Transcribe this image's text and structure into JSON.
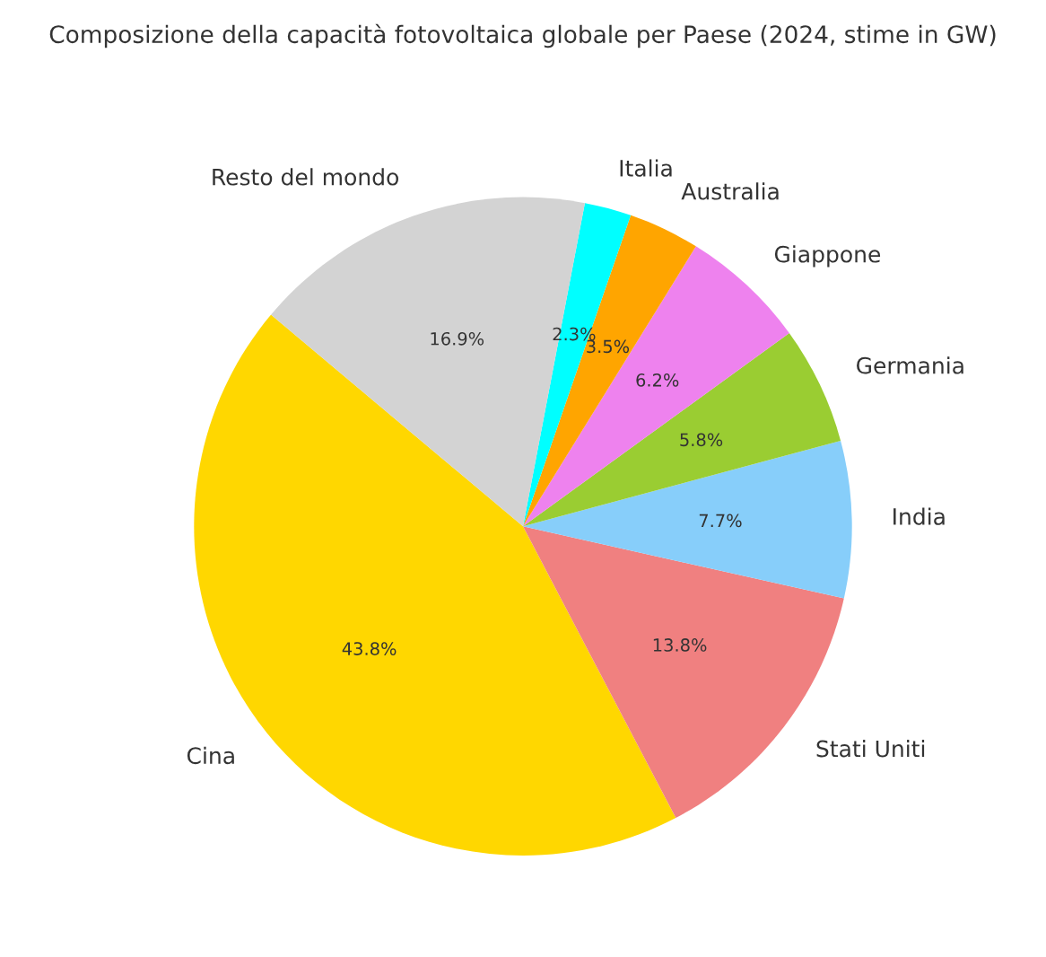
{
  "chart_data": {
    "type": "pie",
    "title": "Composizione della capacità fotovoltaica globale per Paese (2024, stime in GW)",
    "categories": [
      "Cina",
      "Stati Uniti",
      "India",
      "Germania",
      "Giappone",
      "Australia",
      "Italia",
      "Resto del mondo"
    ],
    "values": [
      43.8,
      13.8,
      7.7,
      5.8,
      6.2,
      3.5,
      2.3,
      16.9
    ],
    "value_labels": [
      "43.8%",
      "13.8%",
      "7.7%",
      "5.8%",
      "6.2%",
      "3.5%",
      "2.3%",
      "16.9%"
    ],
    "colors": [
      "#ffd700",
      "#f08080",
      "#87cefa",
      "#9acd32",
      "#ee82ee",
      "#ffa500",
      "#00ffff",
      "#d3d3d3"
    ],
    "legend": false
  }
}
